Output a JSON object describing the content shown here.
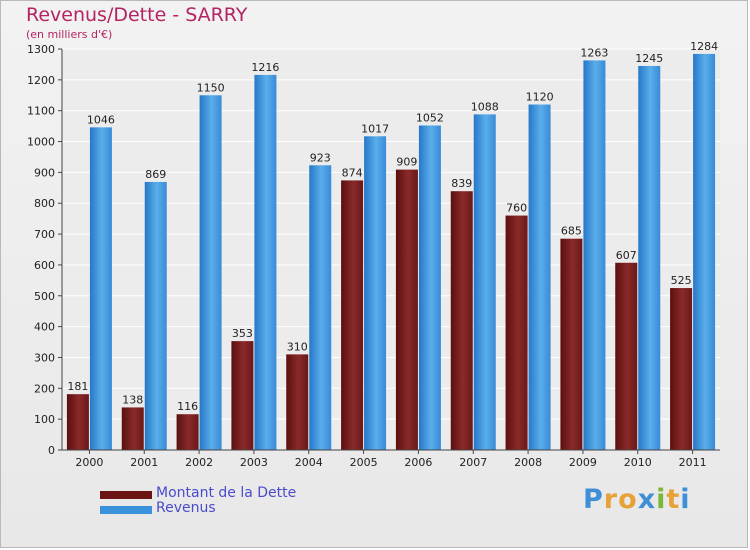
{
  "title": "Revenus/Dette - SARRY",
  "subtitle": "(en milliers d'€)",
  "logo": {
    "letters": [
      "P",
      "r",
      "o",
      "x",
      "i",
      "t",
      "i"
    ],
    "colors": [
      "#3f8fd6",
      "#e8a23a",
      "#e8a23a",
      "#3f8fd6",
      "#7ab83a",
      "#e8a23a",
      "#3f8fd6"
    ]
  },
  "colors": {
    "dette": "#7a1f1f",
    "revenus": "#2f86d6",
    "title": "#b42363",
    "legend_text": "#4b4bcc"
  },
  "chart_data": {
    "type": "bar",
    "title": "Revenus/Dette - SARRY",
    "subtitle": "(en milliers d'€)",
    "categories": [
      "2000",
      "2001",
      "2002",
      "2003",
      "2004",
      "2005",
      "2006",
      "2007",
      "2008",
      "2009",
      "2010",
      "2011"
    ],
    "series": [
      {
        "name": "Montant de la Dette",
        "color": "#7a1f1f",
        "values": [
          181,
          138,
          116,
          353,
          310,
          874,
          909,
          839,
          760,
          685,
          607,
          525
        ]
      },
      {
        "name": "Revenus",
        "color": "#2f86d6",
        "values": [
          1046,
          869,
          1150,
          1216,
          923,
          1017,
          1052,
          1088,
          1120,
          1263,
          1245,
          1284
        ]
      }
    ],
    "ylim": [
      0,
      1300
    ],
    "yticks": [
      0,
      100,
      200,
      300,
      400,
      500,
      600,
      700,
      800,
      900,
      1000,
      1100,
      1200,
      1300
    ],
    "grid": true,
    "legend_position": "bottom-left"
  }
}
